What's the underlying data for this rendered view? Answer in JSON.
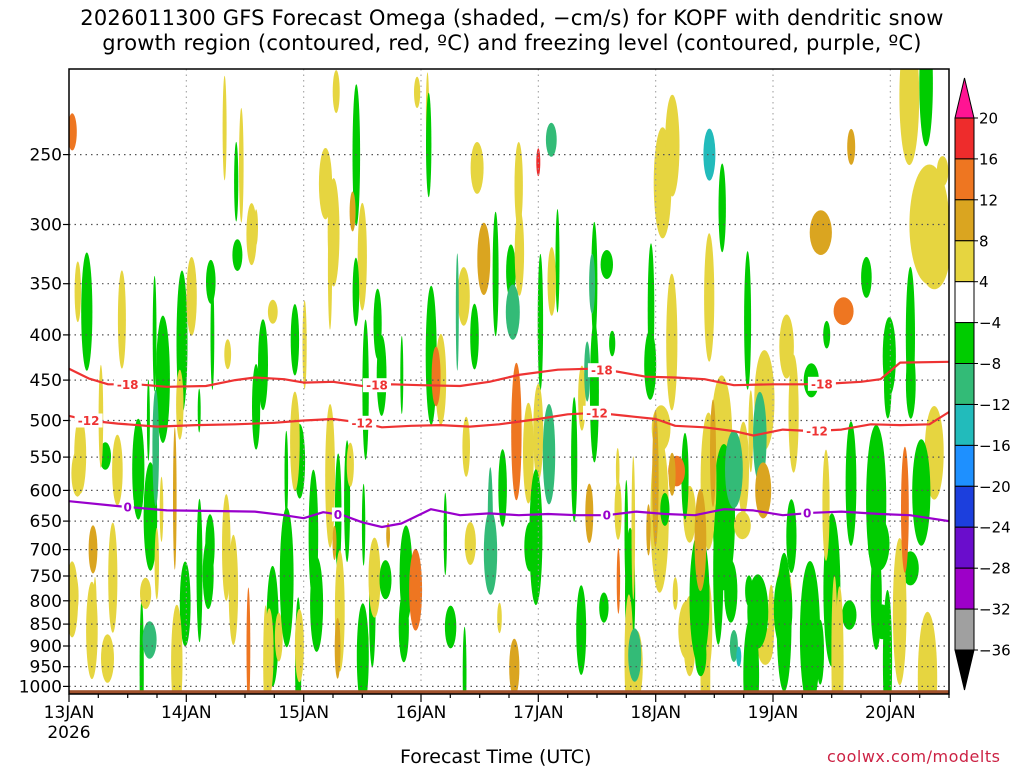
{
  "title_lines": [
    "2026011300 GFS Forecast Omega (shaded, −cm/s) for KOPF with dendritic snow",
    "growth region (contoured, red, ºC) and freezing level (contoured, purple, ºC)"
  ],
  "credit": "coolwx.com/modelts",
  "colors": {
    "dendritic_contour": "#ee3333",
    "freezing_contour": "#9900cc",
    "ground": "#a0522d"
  },
  "chart_data": {
    "type": "heatmap",
    "title": "2026011300 GFS Forecast Omega (shaded, −cm/s) for KOPF with dendritic snow growth region (contoured, red, ºC) and freezing level (contoured, purple, ºC)",
    "xlabel": "Forecast Time (UTC)",
    "ylabel": "",
    "x_ticks": [
      "13JAN",
      "14JAN",
      "15JAN",
      "16JAN",
      "17JAN",
      "18JAN",
      "19JAN",
      "20JAN"
    ],
    "x_tick_sublabel": "2026",
    "x_range_hours": [
      0,
      180
    ],
    "y_ticks": [
      250,
      300,
      350,
      400,
      450,
      500,
      550,
      600,
      650,
      700,
      750,
      800,
      850,
      900,
      950,
      1000
    ],
    "y_range_hpa": [
      200,
      1020
    ],
    "y_scale": "log-pressure",
    "grid": true,
    "colorbar": {
      "levels": [
        "20",
        "16",
        "12",
        "8",
        "4",
        "−4",
        "−8",
        "−12",
        "−16",
        "−20",
        "−24",
        "−28",
        "−32",
        "−36"
      ],
      "colors": [
        "#ff1493",
        "#ee2c2c",
        "#ee7621",
        "#daa520",
        "#e6d540",
        "#ffffff",
        "#00cc00",
        "#33bb77",
        "#22bbbb",
        "#1e90ff",
        "#1c3fdd",
        "#6a0dcc",
        "#9d00c8",
        "#a0a0a0",
        "#000000"
      ]
    },
    "contours": [
      {
        "name": "-18",
        "color": "#ee3333",
        "points": [
          [
            0,
            437
          ],
          [
            4,
            448
          ],
          [
            8,
            455
          ],
          [
            14,
            455
          ],
          [
            20,
            458
          ],
          [
            28,
            457
          ],
          [
            34,
            450
          ],
          [
            38,
            447
          ],
          [
            44,
            449
          ],
          [
            48,
            453
          ],
          [
            54,
            452
          ],
          [
            60,
            457
          ],
          [
            66,
            455
          ],
          [
            72,
            456
          ],
          [
            80,
            457
          ],
          [
            86,
            452
          ],
          [
            92,
            444
          ],
          [
            100,
            438
          ],
          [
            106,
            437
          ],
          [
            112,
            440
          ],
          [
            118,
            446
          ],
          [
            124,
            447
          ],
          [
            130,
            449
          ],
          [
            136,
            456
          ],
          [
            144,
            455
          ],
          [
            150,
            455
          ],
          [
            156,
            454
          ],
          [
            162,
            452
          ],
          [
            166,
            449
          ],
          [
            170,
            430
          ],
          [
            180,
            429
          ]
        ],
        "labels": [
          [
            12,
            "-18"
          ],
          [
            63,
            "-18"
          ],
          [
            109,
            "-18"
          ],
          [
            154,
            "-18"
          ]
        ]
      },
      {
        "name": "-12",
        "color": "#ee3333",
        "points": [
          [
            0,
            494
          ],
          [
            4,
            500
          ],
          [
            10,
            504
          ],
          [
            18,
            508
          ],
          [
            26,
            506
          ],
          [
            34,
            505
          ],
          [
            42,
            503
          ],
          [
            48,
            500
          ],
          [
            54,
            498
          ],
          [
            60,
            503
          ],
          [
            64,
            509
          ],
          [
            70,
            507
          ],
          [
            76,
            506
          ],
          [
            82,
            508
          ],
          [
            88,
            505
          ],
          [
            96,
            498
          ],
          [
            102,
            492
          ],
          [
            108,
            490
          ],
          [
            114,
            494
          ],
          [
            120,
            498
          ],
          [
            124,
            507
          ],
          [
            130,
            509
          ],
          [
            136,
            514
          ],
          [
            140,
            520
          ],
          [
            146,
            512
          ],
          [
            152,
            514
          ],
          [
            158,
            512
          ],
          [
            164,
            505
          ],
          [
            170,
            506
          ],
          [
            176,
            505
          ],
          [
            180,
            489
          ]
        ],
        "labels": [
          [
            4,
            "-12"
          ],
          [
            60,
            "-12"
          ],
          [
            108,
            "-12"
          ],
          [
            153,
            "-12"
          ]
        ]
      },
      {
        "name": "0",
        "color": "#9900cc",
        "points": [
          [
            0,
            617
          ],
          [
            10,
            625
          ],
          [
            20,
            632
          ],
          [
            30,
            633
          ],
          [
            38,
            634
          ],
          [
            44,
            640
          ],
          [
            48,
            645
          ],
          [
            52,
            635
          ],
          [
            56,
            640
          ],
          [
            60,
            652
          ],
          [
            64,
            660
          ],
          [
            68,
            654
          ],
          [
            74,
            630
          ],
          [
            80,
            640
          ],
          [
            86,
            637
          ],
          [
            92,
            640
          ],
          [
            98,
            638
          ],
          [
            104,
            640
          ],
          [
            110,
            640
          ],
          [
            116,
            634
          ],
          [
            122,
            638
          ],
          [
            128,
            640
          ],
          [
            134,
            630
          ],
          [
            140,
            632
          ],
          [
            146,
            640
          ],
          [
            152,
            636
          ],
          [
            158,
            634
          ],
          [
            166,
            638
          ],
          [
            172,
            640
          ],
          [
            180,
            650
          ]
        ],
        "labels": [
          [
            12,
            "0"
          ],
          [
            55,
            "0"
          ],
          [
            110,
            "0"
          ],
          [
            151,
            "0"
          ]
        ]
      }
    ],
    "ground_level_hpa": 1010
  }
}
